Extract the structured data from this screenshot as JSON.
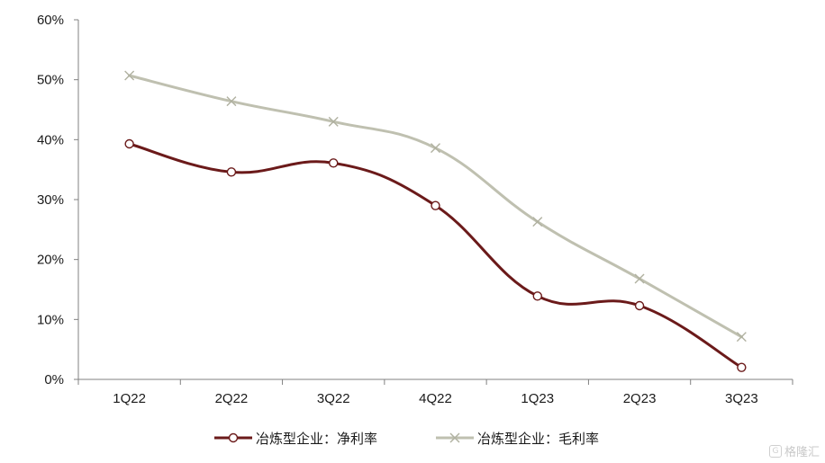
{
  "chart_data": {
    "type": "line",
    "categories": [
      "1Q22",
      "2Q22",
      "3Q22",
      "4Q22",
      "1Q23",
      "2Q23",
      "3Q23"
    ],
    "yticks": [
      "0%",
      "10%",
      "20%",
      "30%",
      "40%",
      "50%",
      "60%"
    ],
    "ylim": [
      0,
      60
    ],
    "unit": "%",
    "grid": false,
    "legend_position": "bottom",
    "series": [
      {
        "name": "冶炼型企业：净利率",
        "values": [
          39.3,
          34.6,
          36.1,
          29.0,
          13.9,
          12.3,
          2.0
        ],
        "color": "#6b1a1a",
        "marker": "circle"
      },
      {
        "name": "冶炼型企业：毛利率",
        "values": [
          50.7,
          46.4,
          43.0,
          38.6,
          26.3,
          16.8,
          7.1
        ],
        "color": "#bfc0b0",
        "marker": "x"
      }
    ]
  },
  "watermark": {
    "logo": "G",
    "text": "格隆汇"
  }
}
